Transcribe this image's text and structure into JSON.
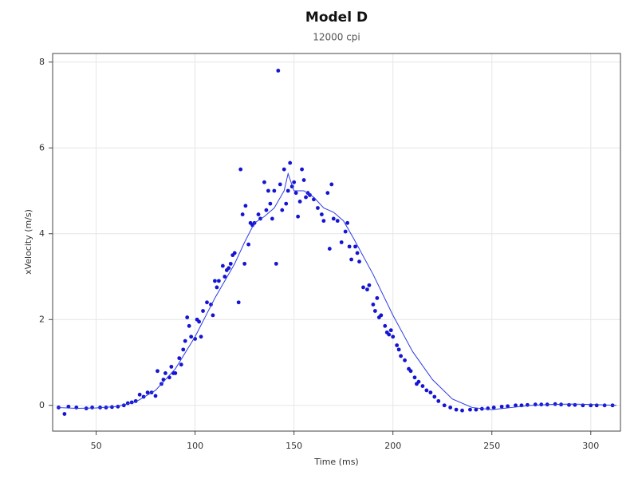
{
  "chart_data": {
    "type": "scatter",
    "title": "Model D",
    "subtitle": "12000 cpi",
    "x_label": "Time (ms)",
    "y_label": "xVelocity (m/s)",
    "xlim": [
      28,
      315
    ],
    "ylim": [
      -0.6,
      8.2
    ],
    "xticks": [
      50,
      100,
      150,
      200,
      250,
      300
    ],
    "yticks": [
      0,
      2,
      4,
      6,
      8
    ],
    "grid": true,
    "series": [
      {
        "type": "scatter",
        "color": "#1414d2",
        "x": [
          31,
          34,
          36,
          40,
          45,
          48,
          52,
          55,
          58,
          61,
          64,
          66,
          68,
          70,
          72,
          74,
          76,
          78,
          80,
          81,
          83,
          84,
          85,
          87,
          88,
          89,
          90,
          92,
          93,
          94,
          95,
          96,
          97,
          98,
          100,
          101,
          102,
          103,
          104,
          106,
          108,
          109,
          110,
          111,
          112,
          114,
          115,
          116,
          117,
          118,
          119,
          120,
          122,
          123,
          124,
          125,
          125.5,
          127,
          128,
          129,
          130,
          132,
          133,
          135,
          136,
          137,
          138,
          139,
          140,
          141,
          142,
          143,
          144,
          145,
          146,
          147,
          148,
          149,
          150,
          151,
          152,
          153,
          154,
          155,
          156,
          157,
          158,
          160,
          162,
          164,
          165,
          167,
          168,
          169,
          170,
          172,
          174,
          176,
          177,
          178,
          179,
          181,
          182,
          183,
          185,
          187,
          188,
          190,
          191,
          192,
          193,
          194,
          196,
          197,
          198,
          199,
          200,
          202,
          203,
          204,
          206,
          208,
          209,
          211,
          212,
          213,
          215,
          217,
          219,
          221,
          223,
          226,
          229,
          232,
          235,
          239,
          242,
          245,
          248,
          251,
          255,
          258,
          262,
          265,
          268,
          272,
          275,
          278,
          282,
          285,
          289,
          292,
          296,
          300,
          303,
          307,
          311
        ],
        "values": [
          -0.05,
          -0.2,
          -0.03,
          -0.05,
          -0.07,
          -0.05,
          -0.05,
          -0.05,
          -0.04,
          -0.03,
          0.0,
          0.05,
          0.07,
          0.1,
          0.25,
          0.2,
          0.3,
          0.3,
          0.22,
          0.8,
          0.5,
          0.6,
          0.75,
          0.65,
          0.9,
          0.75,
          0.75,
          1.1,
          0.95,
          1.3,
          1.5,
          2.05,
          1.85,
          1.6,
          1.55,
          2.0,
          1.95,
          1.6,
          2.2,
          2.4,
          2.35,
          2.1,
          2.9,
          2.75,
          2.9,
          3.25,
          3.0,
          3.15,
          3.2,
          3.3,
          3.5,
          3.55,
          2.4,
          5.5,
          4.45,
          3.3,
          4.65,
          3.75,
          4.25,
          4.2,
          4.25,
          4.45,
          4.35,
          5.2,
          4.55,
          5.0,
          4.7,
          4.35,
          5.0,
          3.3,
          7.8,
          5.15,
          4.55,
          5.5,
          4.7,
          5.0,
          5.65,
          5.1,
          5.2,
          4.95,
          4.4,
          4.75,
          5.5,
          5.25,
          4.85,
          4.95,
          4.9,
          4.8,
          4.6,
          4.45,
          4.3,
          4.95,
          3.65,
          5.15,
          4.35,
          4.3,
          3.8,
          4.05,
          4.25,
          3.7,
          3.4,
          3.7,
          3.55,
          3.35,
          2.75,
          2.7,
          2.8,
          2.35,
          2.2,
          2.5,
          2.05,
          2.1,
          1.85,
          1.7,
          1.65,
          1.75,
          1.6,
          1.4,
          1.3,
          1.15,
          1.05,
          0.85,
          0.8,
          0.65,
          0.5,
          0.55,
          0.45,
          0.35,
          0.3,
          0.2,
          0.1,
          0.0,
          -0.05,
          -0.1,
          -0.12,
          -0.1,
          -0.1,
          -0.08,
          -0.07,
          -0.05,
          -0.03,
          -0.02,
          0.0,
          0.0,
          0.01,
          0.02,
          0.02,
          0.02,
          0.03,
          0.02,
          0.01,
          0.01,
          0.0,
          0.0,
          0.0,
          0.0,
          0.0
        ]
      },
      {
        "type": "line",
        "color": "#2a3ae6",
        "x": [
          30,
          40,
          50,
          60,
          70,
          80,
          90,
          100,
          110,
          120,
          125,
          130,
          135,
          140,
          145,
          147,
          150,
          155,
          160,
          165,
          170,
          175,
          180,
          190,
          200,
          210,
          220,
          230,
          240,
          250,
          260,
          270,
          280,
          290,
          300,
          313
        ],
        "values": [
          -0.05,
          -0.07,
          -0.06,
          -0.03,
          0.08,
          0.35,
          0.85,
          1.6,
          2.5,
          3.3,
          3.8,
          4.25,
          4.4,
          4.6,
          5.0,
          5.4,
          5.0,
          5.0,
          4.85,
          4.6,
          4.5,
          4.3,
          3.9,
          3.05,
          2.1,
          1.25,
          0.6,
          0.15,
          -0.05,
          -0.1,
          -0.05,
          0.0,
          0.02,
          0.03,
          0.02,
          0.0
        ]
      }
    ]
  }
}
